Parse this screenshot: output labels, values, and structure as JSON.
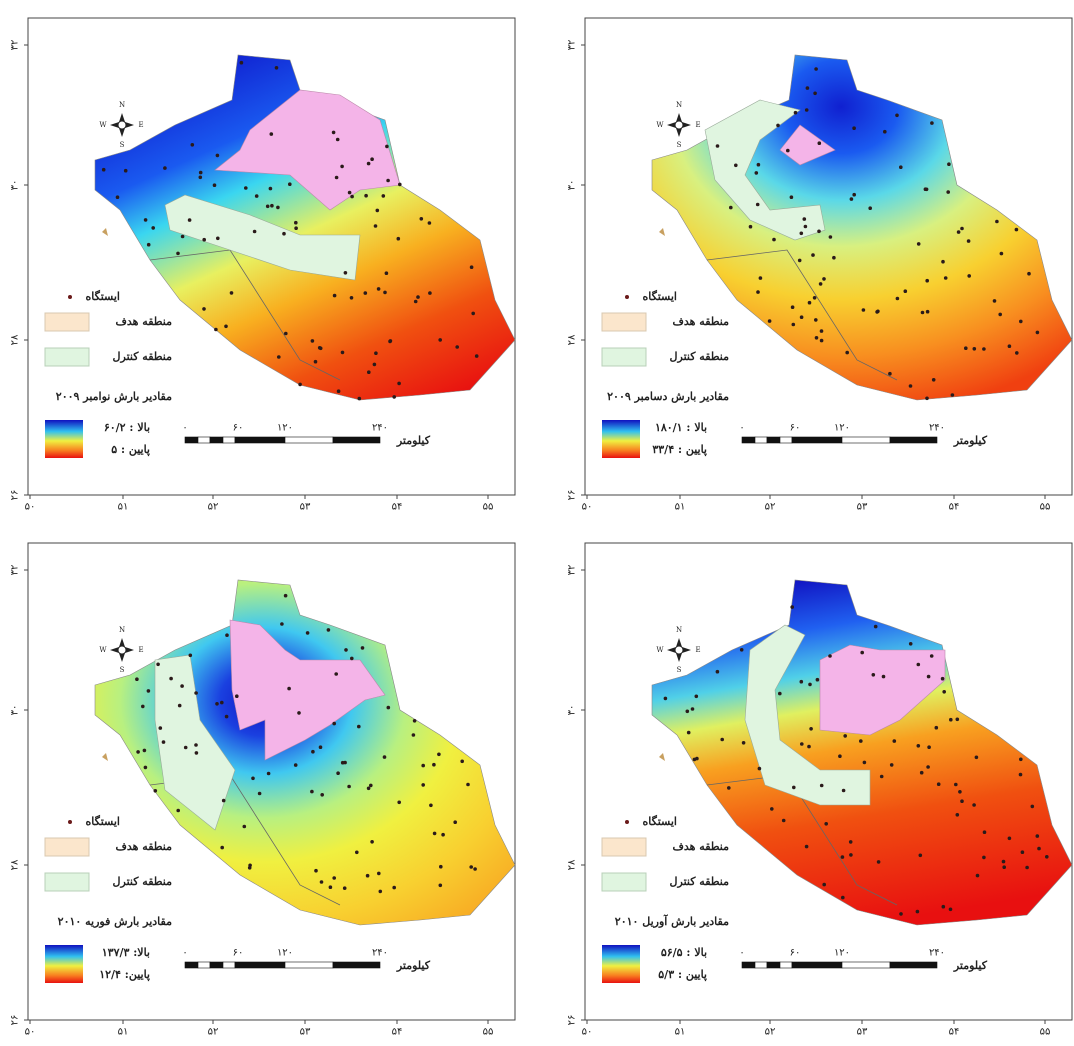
{
  "axes": {
    "xticks": [
      "۵۰",
      "۵۱",
      "۵۲",
      "۵۳",
      "۵۴",
      "۵۵"
    ],
    "yticks": [
      "۳۲",
      "۳۰",
      "۲۸",
      "۲۶"
    ]
  },
  "compass": {
    "n": "N",
    "s": "S",
    "w": "W",
    "e": "E"
  },
  "legend": {
    "station": "ایستگاه",
    "target": "منطقه هدف",
    "control": "منطقه کنترل"
  },
  "scale": {
    "labels": [
      "۰",
      "۶۰",
      "۱۲۰",
      "۲۴۰"
    ],
    "unit": "کیلومتر"
  },
  "panels": [
    {
      "title": "مقادیر بارش نوامبر ۲۰۰۹",
      "high": "بالا : ۶۰/۲",
      "low": "پایین : ۵"
    },
    {
      "title": "مقادیر بارش دسامبر ۲۰۰۹",
      "high": "بالا : ۱۸۰/۱",
      "low": "پایین : ۳۳/۴"
    },
    {
      "title": "مقادیر بارش فوریه ۲۰۱۰",
      "high": "بالا: ۱۳۷/۳",
      "low": "پایین: ۱۲/۴"
    },
    {
      "title": "مقادیر بارش آوریل ۲۰۱۰",
      "high": "بالا : ۵۶/۵",
      "low": "پایین : ۵/۳"
    }
  ]
}
